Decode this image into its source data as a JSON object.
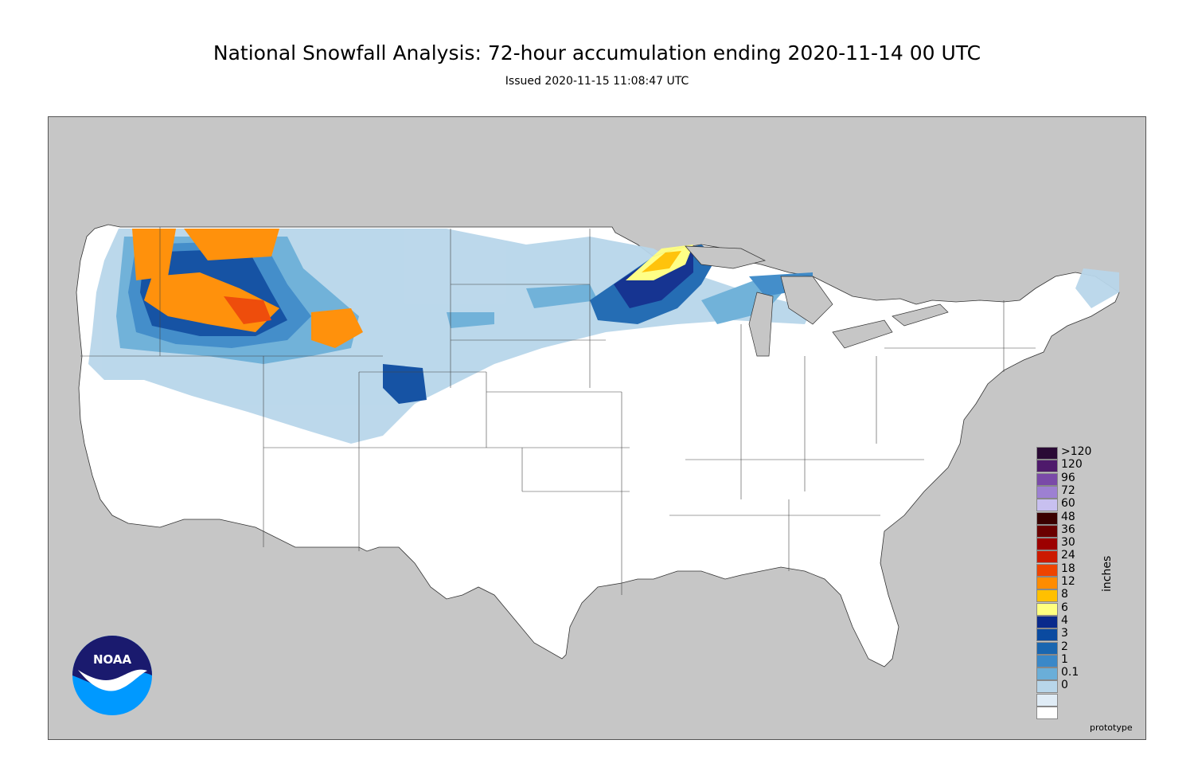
{
  "header": {
    "title": "National Snowfall Analysis: 72-hour accumulation ending 2020-11-14 00 UTC",
    "subtitle": "Issued 2020-11-15 11:08:47 UTC"
  },
  "legend": {
    "units_label": "inches",
    "items": [
      {
        "label": ">120",
        "color": "#2a0a35"
      },
      {
        "label": "120",
        "color": "#4e1a6b"
      },
      {
        "label": "96",
        "color": "#7a4aa8"
      },
      {
        "label": "72",
        "color": "#9d80d2"
      },
      {
        "label": "60",
        "color": "#c8c0f0"
      },
      {
        "label": "48",
        "color": "#3a0000"
      },
      {
        "label": "36",
        "color": "#6a0000"
      },
      {
        "label": "30",
        "color": "#9c0000"
      },
      {
        "label": "24",
        "color": "#cc1a00"
      },
      {
        "label": "18",
        "color": "#ee4400"
      },
      {
        "label": "12",
        "color": "#ff8c00"
      },
      {
        "label": "8",
        "color": "#ffc000"
      },
      {
        "label": "6",
        "color": "#ffff80"
      },
      {
        "label": "4",
        "color": "#0a2a8c"
      },
      {
        "label": "3",
        "color": "#0a4aa0"
      },
      {
        "label": "2",
        "color": "#1a66b0"
      },
      {
        "label": "1",
        "color": "#3a88c8"
      },
      {
        "label": "0.1",
        "color": "#6aaed8"
      },
      {
        "label": "0",
        "color": "#b8d6ea"
      }
    ],
    "extra_swatches": [
      "#e0ecf6",
      "#ffffff"
    ]
  },
  "footer": {
    "prototype_label": "prototype"
  },
  "logo": {
    "text": "NOAA",
    "colors": {
      "dark": "#1a1a6e",
      "light": "#0099ff"
    }
  },
  "map": {
    "land_color": "#ffffff",
    "background_color": "#c6c6c6",
    "boundary_color": "#333333"
  }
}
